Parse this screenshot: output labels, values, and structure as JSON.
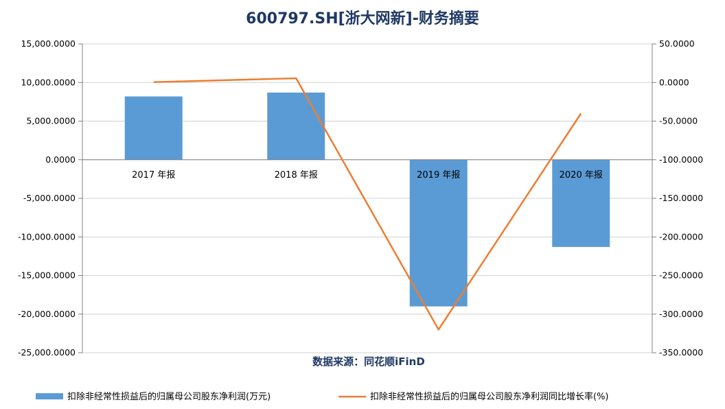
{
  "chart_data": {
    "type": "bar",
    "title": "600797.SH[浙大网新]-财务摘要",
    "source": "数据来源：同花顺iFinD",
    "categories": [
      "2017 年报",
      "2018 年报",
      "2019 年报",
      "2020 年报"
    ],
    "series": [
      {
        "name": "扣除非经常性损益后的归属母公司股东净利润(万元)",
        "type": "bar",
        "axis": "left",
        "color": "#5b9bd5",
        "values": [
          8200,
          8700,
          -19000,
          -11300
        ]
      },
      {
        "name": "扣除非经常性损益后的归属母公司股东净利润同比增长率(%)",
        "type": "line",
        "axis": "right",
        "color": "#ed7d31",
        "values": [
          0.5,
          5.5,
          -320,
          -40
        ]
      }
    ],
    "y_left": {
      "ylim": [
        -25000,
        15000
      ],
      "ticks": [
        "15,000.0000",
        "10,000.0000",
        "5,000.0000",
        "0.0000",
        "-5,000.0000",
        "-10,000.0000",
        "-15,000.0000",
        "-20,000.0000",
        "-25,000.0000"
      ]
    },
    "y_right": {
      "ylim": [
        -350,
        50
      ],
      "ticks": [
        "50.0000",
        "0.0000",
        "-50.0000",
        "-100.0000",
        "-150.0000",
        "-200.0000",
        "-250.0000",
        "-300.0000",
        "-350.0000"
      ]
    },
    "grid": true,
    "legend_position": "bottom"
  }
}
